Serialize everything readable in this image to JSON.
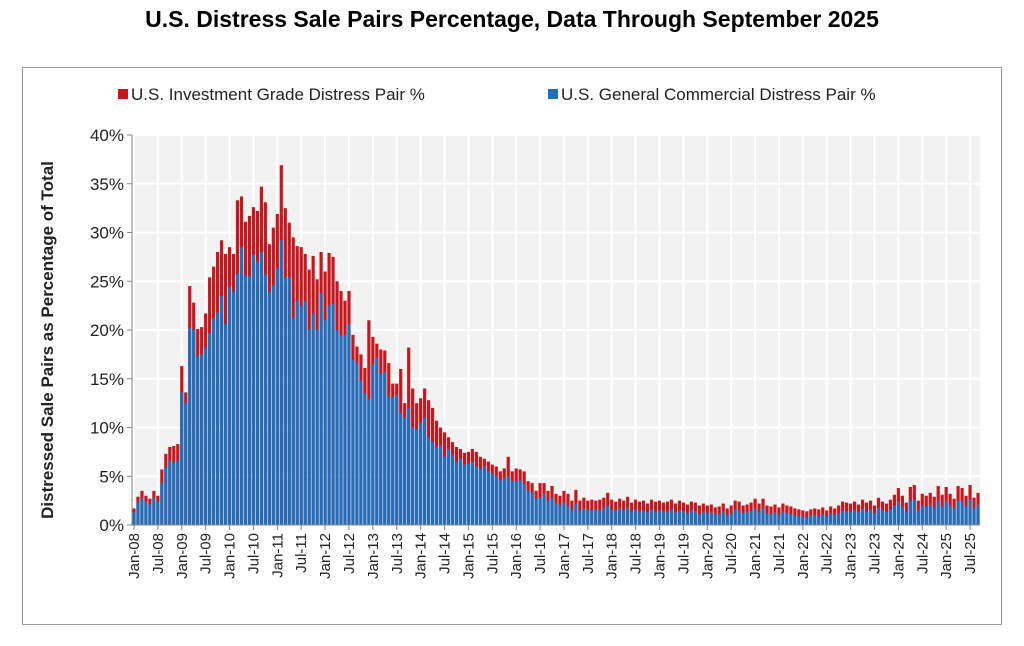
{
  "chart_data": {
    "type": "bar",
    "title": "U.S. Distress Sale Pairs Percentage, Data Through September 2025",
    "ylabel": "Distressed Sale Pairs as Percentage of Total",
    "xlabel": "",
    "ylim": [
      0,
      40
    ],
    "yticks": [
      "0%",
      "5%",
      "10%",
      "15%",
      "20%",
      "25%",
      "30%",
      "35%",
      "40%"
    ],
    "grid": true,
    "legend": "top",
    "layout": "overlay",
    "start_month": "Jan-08",
    "xtick_labels": [
      "Jan-08",
      "Jul-08",
      "Jan-09",
      "Jul-09",
      "Jan-10",
      "Jul-10",
      "Jan-11",
      "Jul-11",
      "Jan-12",
      "Jul-12",
      "Jan-13",
      "Jul-13",
      "Jan-14",
      "Jul-14",
      "Jan-15",
      "Jul-15",
      "Jan-16",
      "Jul-16",
      "Jan-17",
      "Jul-17",
      "Jan-18",
      "Jul-18",
      "Jan-19",
      "Jul-19",
      "Jan-20",
      "Jul-20",
      "Jan-21",
      "Jul-21",
      "Jan-22",
      "Jul-22",
      "Jan-23",
      "Jul-23",
      "Jan-24",
      "Jul-24",
      "Jan-25",
      "Jul-25"
    ],
    "series": [
      {
        "name": "U.S. Investment Grade Distress Pair %",
        "color": "#c8161d",
        "values": [
          1.7,
          2.9,
          3.5,
          3.0,
          2.7,
          3.5,
          3.0,
          5.7,
          7.3,
          8.0,
          8.1,
          8.3,
          16.3,
          13.6,
          24.5,
          22.8,
          20.1,
          20.3,
          21.7,
          25.4,
          26.5,
          28.0,
          29.2,
          27.8,
          28.5,
          27.8,
          33.3,
          33.7,
          31.1,
          31.7,
          32.6,
          32.2,
          34.7,
          33.1,
          28.8,
          30.5,
          31.9,
          36.9,
          32.5,
          31.0,
          29.5,
          28.6,
          28.5,
          27.8,
          26.2,
          27.6,
          25.2,
          28.0,
          26.0,
          27.9,
          27.5,
          25.0,
          24.0,
          23.0,
          24.0,
          19.5,
          18.3,
          17.5,
          16.1,
          21.0,
          19.3,
          18.6,
          18.0,
          17.9,
          16.6,
          14.5,
          14.5,
          16.0,
          12.5,
          18.2,
          14.0,
          12.5,
          13.0,
          14.0,
          12.8,
          12.0,
          10.7,
          10.0,
          9.5,
          9.0,
          8.5,
          8.0,
          7.8,
          7.4,
          7.5,
          7.8,
          7.5,
          7.0,
          6.8,
          6.5,
          6.2,
          6.0,
          5.5,
          5.8,
          7.0,
          5.5,
          5.8,
          5.7,
          5.5,
          4.5,
          4.3,
          3.5,
          4.3,
          4.3,
          3.5,
          4.0,
          3.2,
          3.0,
          3.5,
          3.2,
          2.5,
          3.6,
          2.5,
          2.8,
          2.5,
          2.6,
          2.5,
          2.6,
          2.8,
          3.3,
          2.6,
          2.4,
          2.7,
          2.5,
          2.9,
          2.3,
          2.6,
          2.4,
          2.5,
          2.2,
          2.6,
          2.4,
          2.5,
          2.3,
          2.4,
          2.6,
          2.2,
          2.5,
          2.3,
          2.1,
          2.4,
          2.3,
          2.0,
          2.2,
          2.0,
          2.1,
          1.8,
          1.9,
          2.2,
          1.7,
          2.0,
          2.5,
          2.4,
          2.0,
          2.1,
          2.3,
          2.7,
          2.2,
          2.7,
          2.0,
          1.9,
          2.1,
          1.8,
          2.2,
          2.0,
          1.9,
          1.7,
          1.6,
          1.5,
          1.4,
          1.6,
          1.7,
          1.6,
          1.8,
          1.5,
          1.9,
          1.7,
          2.0,
          2.4,
          2.3,
          2.2,
          2.4,
          2.1,
          2.6,
          2.3,
          2.5,
          2.0,
          2.8,
          2.4,
          2.2,
          2.6,
          3.1,
          3.8,
          3.0,
          2.3,
          3.9,
          4.1,
          2.5,
          3.2,
          3.0,
          3.3,
          2.9,
          4.0,
          3.1,
          3.9,
          3.2,
          2.7,
          4.0,
          3.8,
          3.0,
          4.1,
          2.8,
          3.3
        ]
      },
      {
        "name": "U.S. General Commercial Distress Pair %",
        "color": "#1f6fbf",
        "values": [
          1.3,
          2.3,
          2.8,
          2.4,
          2.1,
          2.8,
          2.4,
          4.3,
          5.9,
          6.6,
          6.4,
          6.6,
          13.6,
          12.5,
          20.2,
          20.0,
          17.3,
          17.5,
          18.2,
          19.7,
          21.2,
          21.8,
          23.5,
          20.6,
          24.4,
          23.9,
          25.8,
          28.5,
          25.6,
          25.5,
          27.7,
          27.0,
          28.0,
          25.7,
          23.9,
          24.6,
          26.3,
          29.2,
          25.4,
          25.4,
          21.2,
          23.0,
          22.5,
          23.0,
          20.0,
          21.7,
          20.0,
          23.8,
          21.0,
          22.5,
          22.7,
          20.0,
          19.5,
          19.5,
          20.6,
          17.0,
          16.6,
          14.8,
          13.5,
          12.9,
          16.5,
          17.2,
          15.5,
          15.7,
          13.2,
          13.1,
          13.3,
          11.5,
          11.0,
          12.0,
          10.0,
          9.8,
          10.5,
          11.0,
          9.0,
          8.5,
          8.0,
          8.2,
          7.0,
          7.8,
          7.2,
          6.5,
          6.8,
          6.2,
          6.3,
          6.5,
          6.0,
          5.8,
          6.0,
          5.5,
          5.3,
          5.0,
          4.6,
          4.8,
          5.0,
          4.5,
          4.5,
          4.6,
          4.2,
          3.5,
          3.3,
          2.7,
          2.8,
          3.2,
          2.5,
          2.8,
          2.3,
          2.0,
          2.3,
          2.0,
          1.6,
          2.2,
          1.5,
          1.7,
          1.6,
          1.5,
          1.6,
          1.5,
          1.7,
          2.0,
          1.6,
          1.5,
          1.7,
          1.5,
          1.8,
          1.4,
          1.6,
          1.4,
          1.5,
          1.3,
          1.6,
          1.4,
          1.5,
          1.4,
          1.4,
          1.6,
          1.3,
          1.5,
          1.4,
          1.2,
          1.5,
          1.4,
          1.1,
          1.3,
          1.2,
          1.3,
          1.1,
          1.1,
          1.4,
          1.0,
          1.2,
          1.6,
          1.5,
          1.2,
          1.3,
          1.4,
          1.7,
          1.3,
          1.7,
          1.2,
          1.1,
          1.3,
          1.0,
          1.4,
          1.2,
          1.1,
          1.0,
          0.9,
          0.9,
          0.8,
          1.0,
          1.0,
          0.9,
          1.1,
          0.9,
          1.2,
          1.0,
          1.2,
          1.5,
          1.4,
          1.4,
          1.5,
          1.3,
          1.7,
          1.4,
          1.6,
          1.2,
          1.8,
          1.5,
          1.4,
          1.6,
          2.0,
          2.4,
          1.9,
          1.4,
          2.5,
          2.6,
          1.5,
          2.0,
          1.9,
          2.1,
          1.8,
          2.5,
          1.9,
          2.5,
          2.0,
          1.7,
          2.5,
          2.4,
          1.9,
          2.6,
          1.7,
          2.1
        ]
      }
    ]
  }
}
